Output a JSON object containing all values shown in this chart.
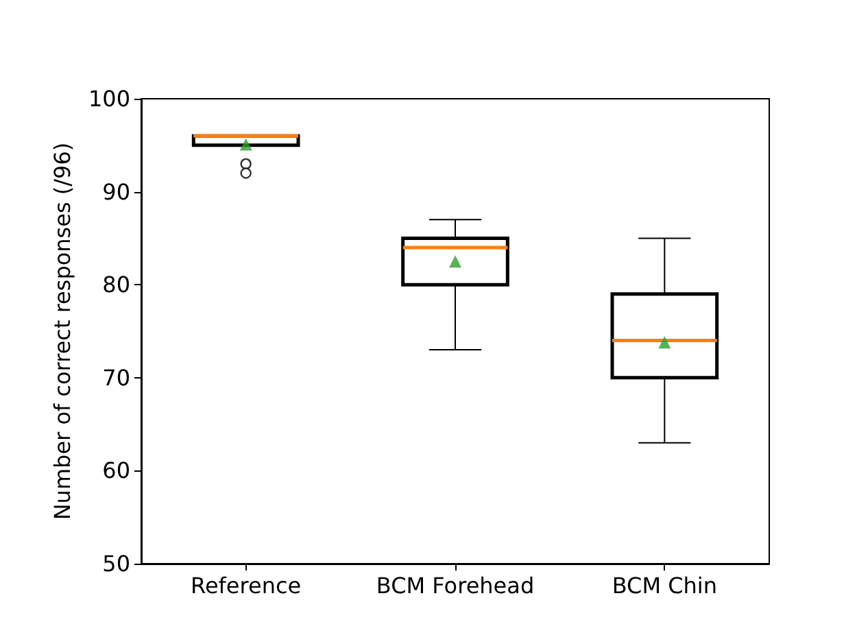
{
  "chart_data": {
    "type": "box",
    "ylabel": "Number of correct responses (/96)",
    "categories": [
      "Reference",
      "BCM Forehead",
      "BCM Chin"
    ],
    "ylim": [
      50,
      100
    ],
    "yticks": [
      50,
      60,
      70,
      80,
      90,
      100
    ],
    "series": [
      {
        "color": "#000000",
        "boxes": [
          {
            "low": 95,
            "q1": 95,
            "median": 96,
            "q3": 96,
            "high": 96,
            "mean": 95.1,
            "outliers": [
              93,
              92
            ]
          },
          {
            "low": 73,
            "q1": 80,
            "median": 84,
            "q3": 85,
            "high": 87,
            "mean": 82.5
          },
          {
            "low": 63,
            "q1": 70,
            "median": 74,
            "q3": 79,
            "high": 85,
            "mean": 73.8
          }
        ]
      }
    ]
  }
}
